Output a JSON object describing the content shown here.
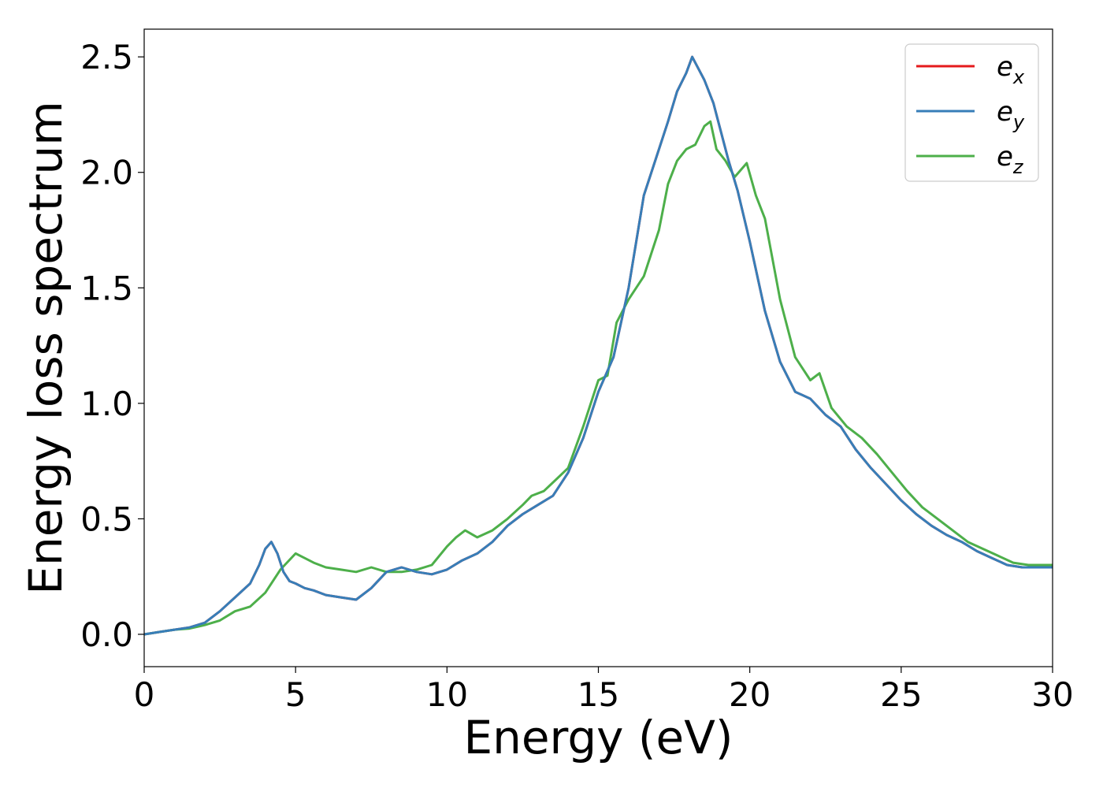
{
  "chart_data": {
    "type": "line",
    "xlabel": "Energy (eV)",
    "ylabel": "Energy loss spectrum",
    "xlim": [
      0,
      30
    ],
    "ylim": [
      -0.14,
      2.62
    ],
    "xticks": [
      0,
      5,
      10,
      15,
      20,
      25,
      30
    ],
    "xtick_labels": [
      "0",
      "5",
      "10",
      "15",
      "20",
      "25",
      "30"
    ],
    "yticks": [
      0.0,
      0.5,
      1.0,
      1.5,
      2.0,
      2.5
    ],
    "ytick_labels": [
      "0.0",
      "0.5",
      "1.0",
      "1.5",
      "2.0",
      "2.5"
    ],
    "grid": false,
    "legend_position": "top-right",
    "series": [
      {
        "name": "e_x",
        "legend_base": "e",
        "legend_sub": "x",
        "color": "#e41a1c",
        "x": [
          0,
          0.5,
          1,
          1.5,
          2,
          2.5,
          3,
          3.5,
          3.8,
          4.0,
          4.2,
          4.4,
          4.6,
          4.8,
          5.0,
          5.3,
          5.6,
          6.0,
          6.5,
          7.0,
          7.5,
          8.0,
          8.5,
          9.0,
          9.5,
          10.0,
          10.5,
          11.0,
          11.5,
          12.0,
          12.5,
          13.0,
          13.5,
          14.0,
          14.5,
          15.0,
          15.5,
          16.0,
          16.5,
          17.0,
          17.3,
          17.6,
          17.9,
          18.1,
          18.3,
          18.5,
          18.8,
          19.0,
          19.3,
          19.6,
          20.0,
          20.5,
          21.0,
          21.5,
          22.0,
          22.5,
          23.0,
          23.5,
          24.0,
          24.5,
          25.0,
          25.5,
          26.0,
          26.5,
          27.0,
          27.5,
          28.0,
          28.5,
          29.0,
          29.5,
          30.0
        ],
        "y": [
          0.0,
          0.01,
          0.02,
          0.03,
          0.05,
          0.1,
          0.16,
          0.22,
          0.3,
          0.37,
          0.4,
          0.35,
          0.27,
          0.23,
          0.22,
          0.2,
          0.19,
          0.17,
          0.16,
          0.15,
          0.2,
          0.27,
          0.29,
          0.27,
          0.26,
          0.28,
          0.32,
          0.35,
          0.4,
          0.47,
          0.52,
          0.56,
          0.6,
          0.7,
          0.85,
          1.05,
          1.2,
          1.5,
          1.9,
          2.1,
          2.22,
          2.35,
          2.43,
          2.5,
          2.45,
          2.4,
          2.3,
          2.2,
          2.05,
          1.92,
          1.7,
          1.4,
          1.18,
          1.05,
          1.02,
          0.95,
          0.9,
          0.8,
          0.72,
          0.65,
          0.58,
          0.52,
          0.47,
          0.43,
          0.4,
          0.36,
          0.33,
          0.3,
          0.29,
          0.29,
          0.29
        ]
      },
      {
        "name": "e_y",
        "legend_base": "e",
        "legend_sub": "y",
        "color": "#377eb8",
        "x": [
          0,
          0.5,
          1,
          1.5,
          2,
          2.5,
          3,
          3.5,
          3.8,
          4.0,
          4.2,
          4.4,
          4.6,
          4.8,
          5.0,
          5.3,
          5.6,
          6.0,
          6.5,
          7.0,
          7.5,
          8.0,
          8.5,
          9.0,
          9.5,
          10.0,
          10.5,
          11.0,
          11.5,
          12.0,
          12.5,
          13.0,
          13.5,
          14.0,
          14.5,
          15.0,
          15.5,
          16.0,
          16.5,
          17.0,
          17.3,
          17.6,
          17.9,
          18.1,
          18.3,
          18.5,
          18.8,
          19.0,
          19.3,
          19.6,
          20.0,
          20.5,
          21.0,
          21.5,
          22.0,
          22.5,
          23.0,
          23.5,
          24.0,
          24.5,
          25.0,
          25.5,
          26.0,
          26.5,
          27.0,
          27.5,
          28.0,
          28.5,
          29.0,
          29.5,
          30.0
        ],
        "y": [
          0.0,
          0.01,
          0.02,
          0.03,
          0.05,
          0.1,
          0.16,
          0.22,
          0.3,
          0.37,
          0.4,
          0.35,
          0.27,
          0.23,
          0.22,
          0.2,
          0.19,
          0.17,
          0.16,
          0.15,
          0.2,
          0.27,
          0.29,
          0.27,
          0.26,
          0.28,
          0.32,
          0.35,
          0.4,
          0.47,
          0.52,
          0.56,
          0.6,
          0.7,
          0.85,
          1.05,
          1.2,
          1.5,
          1.9,
          2.1,
          2.22,
          2.35,
          2.43,
          2.5,
          2.45,
          2.4,
          2.3,
          2.2,
          2.05,
          1.92,
          1.7,
          1.4,
          1.18,
          1.05,
          1.02,
          0.95,
          0.9,
          0.8,
          0.72,
          0.65,
          0.58,
          0.52,
          0.47,
          0.43,
          0.4,
          0.36,
          0.33,
          0.3,
          0.29,
          0.29,
          0.29
        ]
      },
      {
        "name": "e_z",
        "legend_base": "e",
        "legend_sub": "z",
        "color": "#4daf4a",
        "x": [
          0,
          0.5,
          1,
          1.5,
          2,
          2.5,
          3,
          3.5,
          4.0,
          4.5,
          5.0,
          5.3,
          5.6,
          6.0,
          6.5,
          7.0,
          7.5,
          8.0,
          8.5,
          9.0,
          9.5,
          10.0,
          10.3,
          10.6,
          11.0,
          11.5,
          12.0,
          12.5,
          12.8,
          13.2,
          13.6,
          14.0,
          14.5,
          15.0,
          15.3,
          15.6,
          16.0,
          16.5,
          17.0,
          17.3,
          17.6,
          17.9,
          18.2,
          18.5,
          18.7,
          18.9,
          19.2,
          19.5,
          19.9,
          20.2,
          20.5,
          21.0,
          21.5,
          22.0,
          22.3,
          22.7,
          23.2,
          23.7,
          24.2,
          24.7,
          25.2,
          25.7,
          26.2,
          26.7,
          27.2,
          27.7,
          28.2,
          28.7,
          29.2,
          29.7,
          30.0
        ],
        "y": [
          0.0,
          0.01,
          0.02,
          0.025,
          0.04,
          0.06,
          0.1,
          0.12,
          0.18,
          0.28,
          0.35,
          0.33,
          0.31,
          0.29,
          0.28,
          0.27,
          0.29,
          0.27,
          0.27,
          0.28,
          0.3,
          0.38,
          0.42,
          0.45,
          0.42,
          0.45,
          0.5,
          0.56,
          0.6,
          0.62,
          0.67,
          0.72,
          0.9,
          1.1,
          1.12,
          1.35,
          1.45,
          1.55,
          1.75,
          1.95,
          2.05,
          2.1,
          2.12,
          2.2,
          2.22,
          2.1,
          2.05,
          1.98,
          2.04,
          1.9,
          1.8,
          1.45,
          1.2,
          1.1,
          1.13,
          0.98,
          0.9,
          0.85,
          0.78,
          0.7,
          0.62,
          0.55,
          0.5,
          0.45,
          0.4,
          0.37,
          0.34,
          0.31,
          0.3,
          0.3,
          0.3
        ]
      }
    ]
  }
}
